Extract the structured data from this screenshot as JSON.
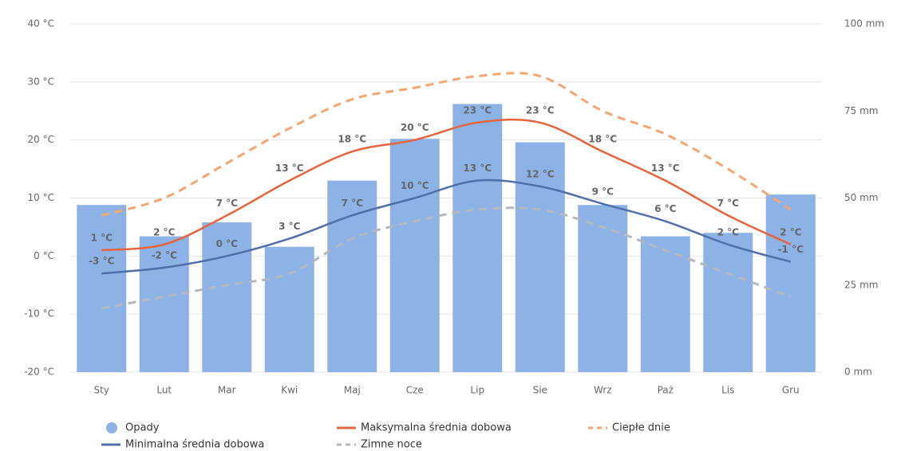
{
  "chart_data": {
    "type": "combo",
    "categories": [
      "Sty",
      "Lut",
      "Mar",
      "Kwi",
      "Maj",
      "Cze",
      "Lip",
      "Sie",
      "Wrz",
      "Paż",
      "Lis",
      "Gru"
    ],
    "ylim": [
      -20,
      40
    ],
    "yticks": [
      {
        "value": -20,
        "label": "-20 °C"
      },
      {
        "value": -10,
        "label": "-10 °C"
      },
      {
        "value": 0,
        "label": "0 °C"
      },
      {
        "value": 10,
        "label": "10 °C"
      },
      {
        "value": 20,
        "label": "20 °C"
      },
      {
        "value": 30,
        "label": "30 °C"
      },
      {
        "value": 40,
        "label": "40 °C"
      }
    ],
    "y2lim": [
      0,
      100
    ],
    "y2ticks": [
      {
        "value": 0,
        "label": "0 mm"
      },
      {
        "value": 25,
        "label": "25 mm"
      },
      {
        "value": 50,
        "label": "50 mm"
      },
      {
        "value": 75,
        "label": "75 mm"
      },
      {
        "value": 100,
        "label": "100 mm"
      }
    ],
    "grid": true,
    "series": [
      {
        "name": "Opady",
        "type": "bar",
        "axis": "y2",
        "color": "#8cb2e6",
        "values": [
          48,
          39,
          43,
          36,
          55,
          67,
          77,
          66,
          48,
          39,
          40,
          51
        ]
      },
      {
        "name": "Maksymalna średnia dobowa",
        "type": "line",
        "color": "#e8643c",
        "values": [
          1,
          2,
          7,
          13,
          18,
          20,
          23,
          23,
          18,
          13,
          7,
          2
        ],
        "value_labels": [
          "1 °C",
          "2 °C",
          "7 °C",
          "13 °C",
          "18 °C",
          "20 °C",
          "23 °C",
          "23 °C",
          "18 °C",
          "13 °C",
          "7 °C",
          "2 °C"
        ]
      },
      {
        "name": "Ciepłe dnie",
        "type": "line",
        "dashed": true,
        "color": "#f5a66e",
        "values": [
          7,
          10,
          16,
          22,
          27,
          29,
          31,
          31,
          25,
          21,
          15,
          8
        ]
      },
      {
        "name": "Minimalna średnia dobowa",
        "type": "line",
        "color": "#4f6fa8",
        "values": [
          -3,
          -2,
          0,
          3,
          7,
          10,
          13,
          12,
          9,
          6,
          2,
          -1
        ],
        "value_labels": [
          "-3 °C",
          "-2 °C",
          "0 °C",
          "3 °C",
          "7 °C",
          "10 °C",
          "13 °C",
          "12 °C",
          "9 °C",
          "6 °C",
          "2 °C",
          "-1 °C"
        ]
      },
      {
        "name": "Zimne noce",
        "type": "line",
        "dashed": true,
        "color": "#b4b8bc",
        "values": [
          -9,
          -7,
          -5,
          -3,
          3,
          6,
          8,
          8,
          5,
          1,
          -3,
          -7
        ]
      }
    ]
  }
}
